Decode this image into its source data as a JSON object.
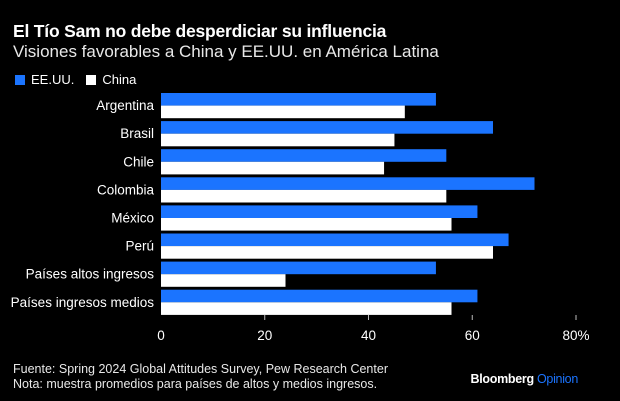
{
  "header": {
    "title": "El Tío Sam no debe desperdiciar su influencia",
    "subtitle": "Visiones favorables a China y EE.UU. en América Latina"
  },
  "legend": [
    {
      "label": "EE.UU.",
      "color": "#1b74ff"
    },
    {
      "label": "China",
      "color": "#ffffff"
    }
  ],
  "footer": {
    "source": "Fuente: Spring 2024 Global Attitudes Survey, Pew Research Center",
    "note": "Nota: muestra promedios para países de altos y medios ingresos.",
    "brand_main": "Bloomberg",
    "brand_sub": "Opinion"
  },
  "chart_data": {
    "type": "bar",
    "orientation": "horizontal",
    "title": "El Tío Sam no debe desperdiciar su influencia",
    "subtitle": "Visiones favorables a China y EE.UU. en América Latina",
    "categories": [
      "Argentina",
      "Brasil",
      "Chile",
      "Colombia",
      "México",
      "Perú",
      "Países altos ingresos",
      "Países ingresos medios"
    ],
    "series": [
      {
        "name": "EE.UU.",
        "color": "#1b74ff",
        "values": [
          53,
          64,
          55,
          72,
          61,
          67,
          53,
          61
        ]
      },
      {
        "name": "China",
        "color": "#ffffff",
        "values": [
          47,
          45,
          43,
          55,
          56,
          64,
          24,
          56
        ]
      }
    ],
    "xlim": [
      0,
      80
    ],
    "xticks": [
      0,
      20,
      40,
      60,
      80
    ],
    "xtick_labels": [
      "0",
      "20",
      "40",
      "60",
      "80%"
    ],
    "xlabel": "",
    "ylabel": "",
    "grid": false,
    "legend_position": "top-left"
  }
}
